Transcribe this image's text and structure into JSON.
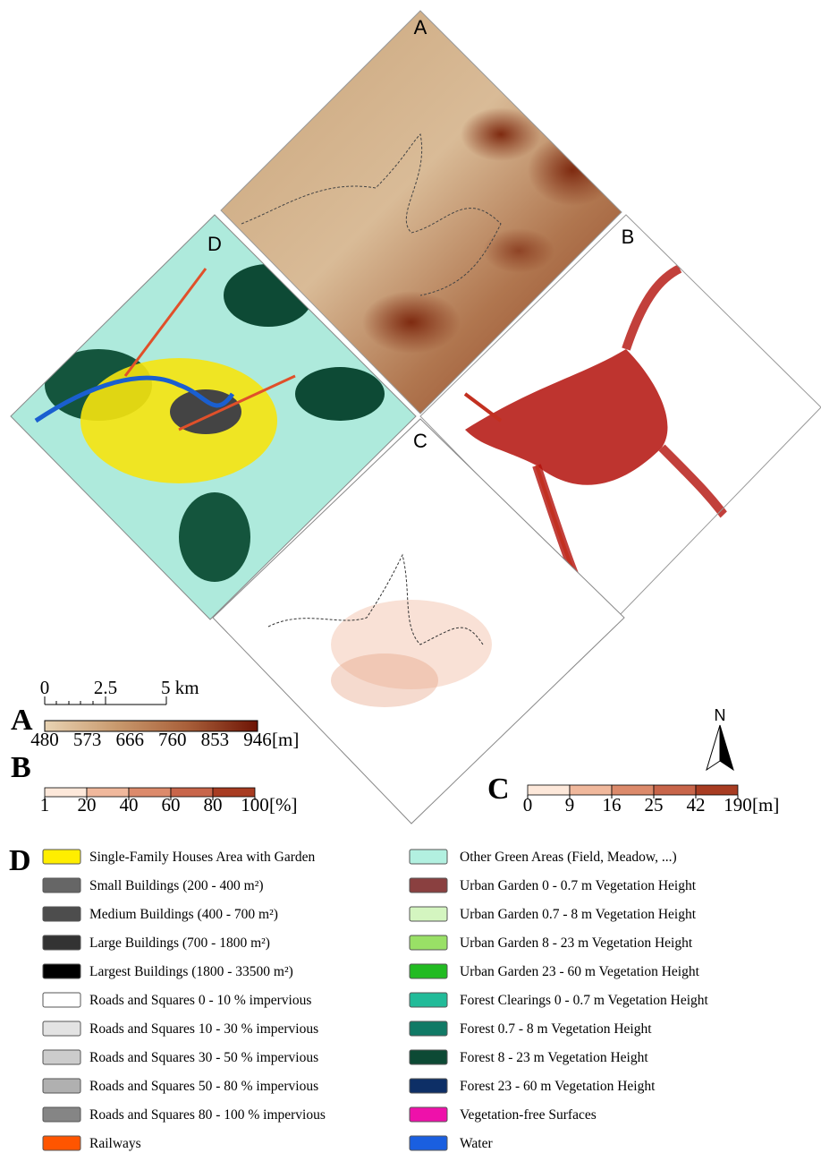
{
  "panels": [
    "A",
    "B",
    "C",
    "D"
  ],
  "scale_bar": [
    "0",
    "2.5",
    "5 km"
  ],
  "north": "N",
  "ramps": [
    {
      "label": "A",
      "ticks": [
        480,
        573,
        666,
        760,
        853,
        946
      ],
      "unit": "[m]",
      "continuous": true,
      "colors": [
        "#e8d3b3",
        "#c99a6e",
        "#a9603a",
        "#6e1405"
      ]
    },
    {
      "label": "B",
      "ticks": [
        1,
        20,
        40,
        60,
        80,
        100
      ],
      "unit": "[%]",
      "continuous": false,
      "colors": [
        "#fde8da",
        "#f0b89c",
        "#dc8a6b",
        "#c8654a",
        "#a83c22"
      ]
    },
    {
      "label": "C",
      "ticks": [
        0,
        9,
        16,
        25,
        42,
        190
      ],
      "unit": "[m]",
      "continuous": false,
      "colors": [
        "#fde8da",
        "#f0b89c",
        "#dc8a6b",
        "#c8654a",
        "#a83c22"
      ]
    }
  ],
  "classes": {
    "label": "D",
    "columns": [
      [
        {
          "name": "Single-Family Houses Area with Garden",
          "color": "#ffee00"
        },
        {
          "name": "Small Buildings (200 - 400 m²)",
          "color": "#666666"
        },
        {
          "name": "Medium Buildings (400 - 700 m²)",
          "color": "#4d4d4d"
        },
        {
          "name": "Large Buildings (700 - 1800 m²)",
          "color": "#333333"
        },
        {
          "name": "Largest Buildings (1800 - 33500 m²)",
          "color": "#000000"
        },
        {
          "name": "Roads and Squares 0 - 10 % impervious",
          "color": "#ffffff"
        },
        {
          "name": "Roads and Squares 10 - 30 % impervious",
          "color": "#e3e3e3"
        },
        {
          "name": "Roads and Squares 30 - 50 % impervious",
          "color": "#cccccc"
        },
        {
          "name": "Roads and Squares 50 - 80 % impervious",
          "color": "#b0b0b0"
        },
        {
          "name": "Roads and Squares 80 - 100 % impervious",
          "color": "#858585"
        },
        {
          "name": "Railways",
          "color": "#ff5500"
        }
      ],
      [
        {
          "name": "Other Green Areas (Field, Meadow, ...)",
          "color": "#b2f0e0"
        },
        {
          "name": "Urban Garden 0 - 0.7 m Vegetation Height",
          "color": "#8a4040"
        },
        {
          "name": "Urban Garden 0.7 - 8 m Vegetation Height",
          "color": "#d4f5c0"
        },
        {
          "name": "Urban Garden 8 - 23 m Vegetation Height",
          "color": "#99e066"
        },
        {
          "name": "Urban Garden 23 - 60 m Vegetation Height",
          "color": "#22bb22"
        },
        {
          "name": "Forest Clearings 0 - 0.7 m Vegetation Height",
          "color": "#22bb99"
        },
        {
          "name": "Forest 0.7 - 8 m Vegetation Height",
          "color": "#117a66"
        },
        {
          "name": "Forest 8 - 23 m Vegetation Height",
          "color": "#0d4a35"
        },
        {
          "name": "Forest 23 - 60 m Vegetation Height",
          "color": "#0d2f66"
        },
        {
          "name": "Vegetation-free Surfaces",
          "color": "#ee11aa"
        },
        {
          "name": "Water",
          "color": "#1a5fe0"
        }
      ]
    ]
  }
}
